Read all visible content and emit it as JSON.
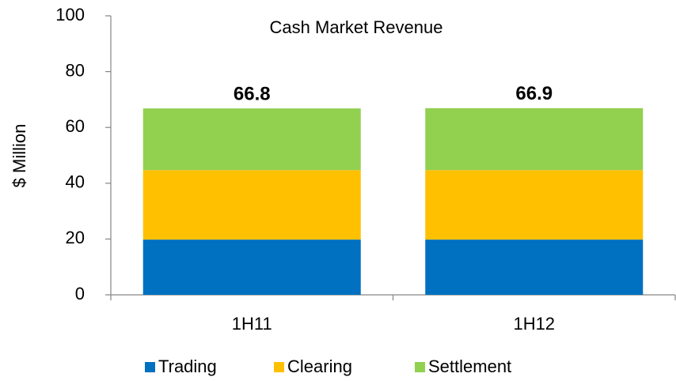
{
  "chart_data": {
    "type": "stacked_bar",
    "title": "Cash Market Revenue",
    "y_label": "$ Million",
    "categories": [
      "1H11",
      "1H12"
    ],
    "series": [
      {
        "name": "Trading",
        "color": "#0070c0",
        "values": [
          19.8,
          19.8
        ]
      },
      {
        "name": "Clearing",
        "color": "#ffc000",
        "values": [
          24.9,
          24.9
        ]
      },
      {
        "name": "Settlement",
        "color": "#92d050",
        "values": [
          22.1,
          22.2
        ]
      }
    ],
    "totals": [
      66.8,
      66.9
    ],
    "ylim": [
      0,
      100
    ],
    "yticks": [
      0,
      20,
      40,
      60,
      80,
      100
    ],
    "grid": false,
    "legend": "bottom"
  }
}
